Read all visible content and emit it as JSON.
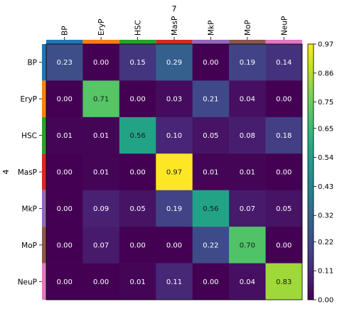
{
  "chart_data": {
    "type": "heatmap",
    "xlabel": "7",
    "ylabel": "4",
    "categories": [
      "BP",
      "EryP",
      "HSC",
      "MasP",
      "MkP",
      "MoP",
      "NeuP"
    ],
    "values": [
      [
        0.23,
        0.0,
        0.15,
        0.29,
        0.0,
        0.19,
        0.14
      ],
      [
        0.0,
        0.71,
        0.0,
        0.03,
        0.21,
        0.04,
        0.0
      ],
      [
        0.01,
        0.01,
        0.56,
        0.1,
        0.05,
        0.08,
        0.18
      ],
      [
        0.0,
        0.01,
        0.0,
        0.97,
        0.01,
        0.01,
        0.0
      ],
      [
        0.0,
        0.09,
        0.05,
        0.19,
        0.56,
        0.07,
        0.05
      ],
      [
        0.0,
        0.07,
        0.0,
        0.0,
        0.22,
        0.7,
        0.0
      ],
      [
        0.0,
        0.0,
        0.01,
        0.11,
        0.0,
        0.04,
        0.83
      ]
    ],
    "category_colors": [
      "#1f77b4",
      "#ff7f0e",
      "#2ca02c",
      "#d62728",
      "#9467bd",
      "#8c564b",
      "#e377c2"
    ],
    "colormap": "viridis",
    "vmin": 0.0,
    "vmax": 0.97,
    "colorbar_ticks": [
      "0.00",
      "0.11",
      "0.22",
      "0.32",
      "0.43",
      "0.54",
      "0.65",
      "0.75",
      "0.86",
      "0.97"
    ]
  }
}
